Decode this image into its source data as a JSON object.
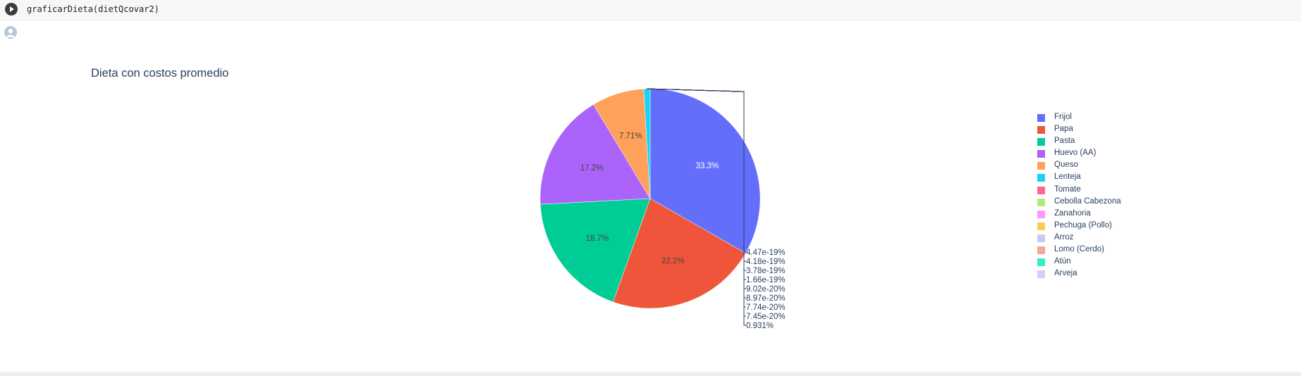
{
  "cell": {
    "code": "graficarDieta(dietQcovar2)",
    "run_icon": "play-icon",
    "avatar_icon": "user-avatar-icon"
  },
  "chart_data": {
    "type": "pie",
    "title": "Dieta con costos promedio",
    "legend_position": "right",
    "labels": [
      "Frijol",
      "Papa",
      "Pasta",
      "Huevo (AA)",
      "Queso",
      "Lenteja",
      "Tomate",
      "Cebolla Cabezona",
      "Zanahoria",
      "Pechuga (Pollo)",
      "Arroz",
      "Lomo (Cerdo)",
      "Atún",
      "Arveja"
    ],
    "values": [
      33.3,
      22.2,
      18.7,
      17.2,
      7.71,
      0.931,
      4.47e-19,
      4.18e-19,
      3.78e-19,
      1.66e-19,
      9.02e-20,
      8.97e-20,
      7.74e-20,
      7.45e-20
    ],
    "slice_text": [
      "33.3%",
      "22.2%",
      "18.7%",
      "17.2%",
      "7.71%",
      "",
      "",
      "",
      "",
      "",
      "",
      "",
      "",
      ""
    ],
    "outside_labels": [
      "4.47e-19%",
      "4.18e-19%",
      "3.78e-19%",
      "1.66e-19%",
      "9.02e-20%",
      "8.97e-20%",
      "7.74e-20%",
      "7.45e-20%",
      "0.931%"
    ],
    "colors": [
      "#636efa",
      "#EF553B",
      "#00cc96",
      "#ab63fa",
      "#FFA15A",
      "#19d3f3",
      "#FF6692",
      "#B6E880",
      "#FF97FF",
      "#FECB52",
      "#c6cbf5",
      "#f4a898",
      "#33f0c0",
      "#dcc8fc"
    ]
  }
}
